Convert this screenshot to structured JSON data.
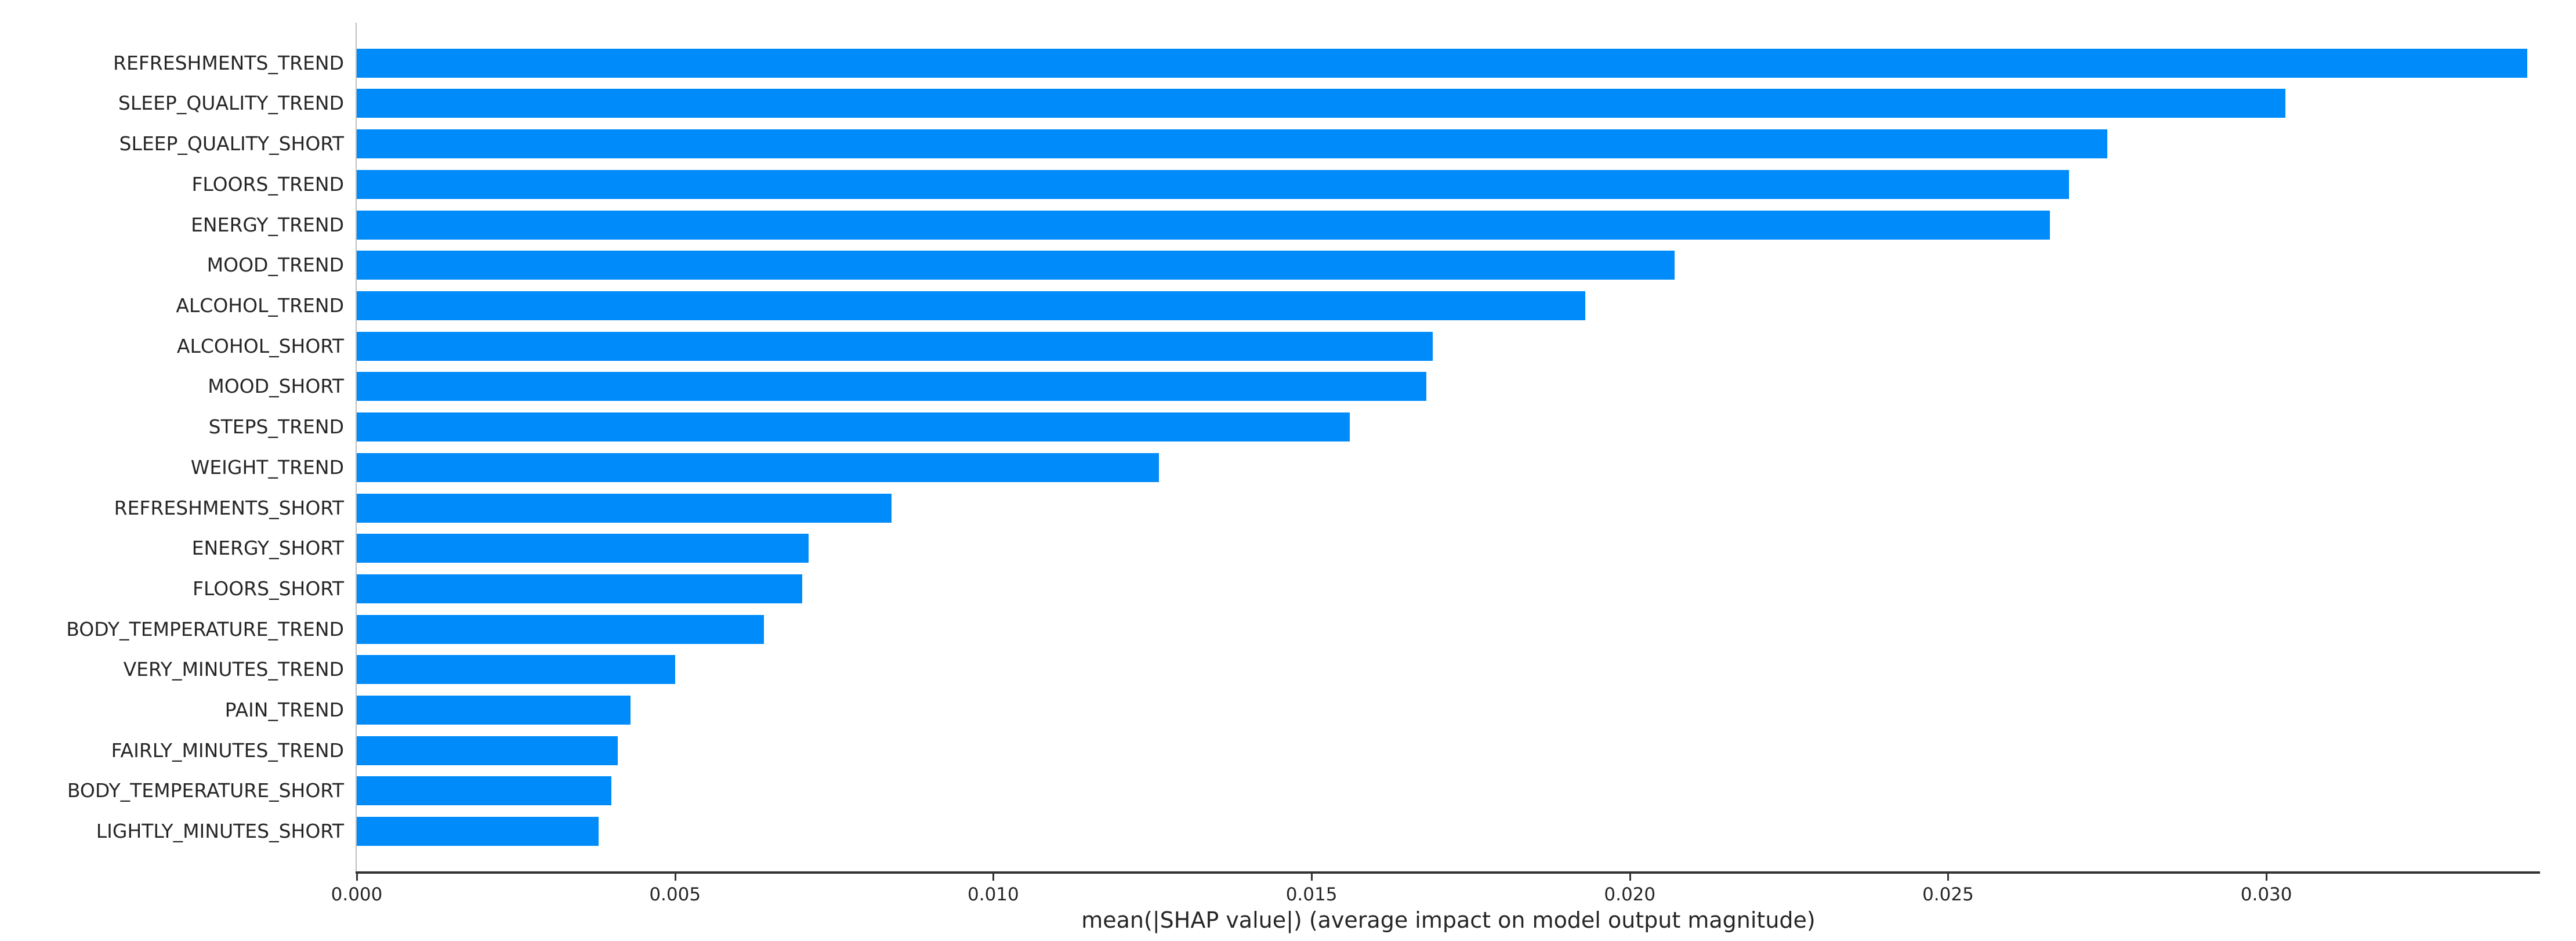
{
  "chart_data": {
    "type": "bar",
    "orientation": "horizontal",
    "title": "",
    "categories": [
      "REFRESHMENTS_TREND",
      "SLEEP_QUALITY_TREND",
      "SLEEP_QUALITY_SHORT",
      "FLOORS_TREND",
      "ENERGY_TREND",
      "MOOD_TREND",
      "ALCOHOL_TREND",
      "ALCOHOL_SHORT",
      "MOOD_SHORT",
      "STEPS_TREND",
      "WEIGHT_TREND",
      "REFRESHMENTS_SHORT",
      "ENERGY_SHORT",
      "FLOORS_SHORT",
      "BODY_TEMPERATURE_TREND",
      "VERY_MINUTES_TREND",
      "PAIN_TREND",
      "FAIRLY_MINUTES_TREND",
      "BODY_TEMPERATURE_SHORT",
      "LIGHTLY_MINUTES_SHORT"
    ],
    "values": [
      0.0341,
      0.0303,
      0.0275,
      0.0269,
      0.0266,
      0.0207,
      0.0193,
      0.0169,
      0.0168,
      0.0156,
      0.0126,
      0.0084,
      0.0071,
      0.007,
      0.0064,
      0.005,
      0.0043,
      0.0041,
      0.004,
      0.0038
    ],
    "xlabel": "mean(|SHAP value|) (average impact on model output magnitude)",
    "ylabel": "",
    "xlim": [
      0,
      0.0343
    ],
    "xticks": [
      0.0,
      0.005,
      0.01,
      0.015,
      0.02,
      0.025,
      0.03
    ],
    "xtick_labels": [
      "0.000",
      "0.005",
      "0.010",
      "0.015",
      "0.020",
      "0.025",
      "0.030"
    ],
    "grid": false,
    "legend_position": "none",
    "bar_color": "#008bfb",
    "axis_color": "#333333",
    "left_spine_color": "#bfbfbf",
    "text_color": "#262626",
    "background_color": "#ffffff"
  }
}
